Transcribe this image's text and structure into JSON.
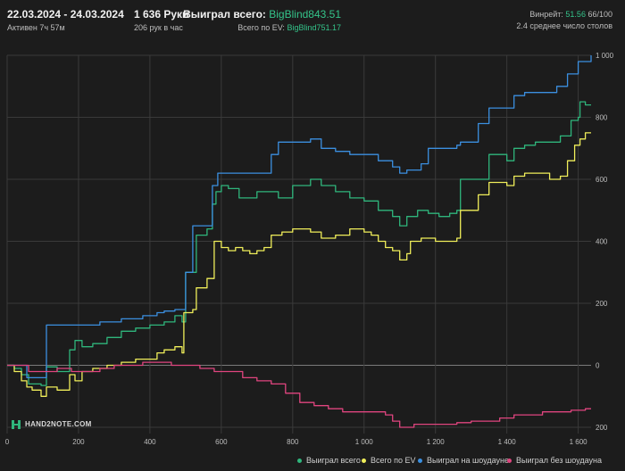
{
  "header": {
    "date_range": "22.03.2024 - 24.03.2024",
    "active": "Активен 7ч 57м",
    "hands": "1 636 Руки",
    "hands_per_hour": "206 рук в час",
    "won_label": "Выиграл всего:",
    "won_value": "BigBlind843.51",
    "ev_label": "Всего по EV:",
    "ev_value": "BigBlind751.17",
    "winrate_label": "Винрейт:",
    "winrate_value": "51.56",
    "winrate_rest": "66/100",
    "tables": "2.4 среднее число столов"
  },
  "logo_text": "HAND2NOTE.COM",
  "colors": {
    "background": "#1c1c1c",
    "grid": "#3a3a3a",
    "total": "#2fb67c",
    "ev": "#f0ee5a",
    "showdown": "#3b8fe0",
    "non_showdown": "#e0457f"
  },
  "chart_data": {
    "type": "line",
    "xlabel": "",
    "ylabel": "",
    "xlim": [
      0,
      1636
    ],
    "ylim": [
      -220,
      1000
    ],
    "x_ticks": [
      {
        "v": 0,
        "label": "0"
      },
      {
        "v": 200,
        "label": "200"
      },
      {
        "v": 400,
        "label": "400"
      },
      {
        "v": 600,
        "label": "600"
      },
      {
        "v": 800,
        "label": "800"
      },
      {
        "v": 1000,
        "label": "1 000"
      },
      {
        "v": 1200,
        "label": "1 200"
      },
      {
        "v": 1400,
        "label": "1 400"
      },
      {
        "v": 1600,
        "label": "1 600"
      }
    ],
    "y_ticks": [
      {
        "v": 1000,
        "label": "1 000"
      },
      {
        "v": 800,
        "label": "800"
      },
      {
        "v": 600,
        "label": "600"
      },
      {
        "v": 400,
        "label": "400"
      },
      {
        "v": 200,
        "label": "200"
      },
      {
        "v": 0,
        "label": "0"
      },
      {
        "v": -200,
        "label": "200"
      }
    ],
    "series": [
      {
        "name": "Выиграл всего",
        "color": "#2fb67c",
        "points": [
          [
            0,
            0
          ],
          [
            20,
            -10
          ],
          [
            40,
            -30
          ],
          [
            60,
            -60
          ],
          [
            95,
            -65
          ],
          [
            110,
            -5
          ],
          [
            140,
            -20
          ],
          [
            175,
            50
          ],
          [
            190,
            80
          ],
          [
            210,
            60
          ],
          [
            240,
            70
          ],
          [
            280,
            90
          ],
          [
            320,
            110
          ],
          [
            360,
            120
          ],
          [
            400,
            130
          ],
          [
            440,
            140
          ],
          [
            470,
            160
          ],
          [
            490,
            140
          ],
          [
            500,
            300
          ],
          [
            530,
            420
          ],
          [
            560,
            440
          ],
          [
            575,
            520
          ],
          [
            585,
            560
          ],
          [
            600,
            580
          ],
          [
            620,
            570
          ],
          [
            650,
            540
          ],
          [
            700,
            560
          ],
          [
            730,
            560
          ],
          [
            760,
            540
          ],
          [
            800,
            580
          ],
          [
            850,
            600
          ],
          [
            880,
            580
          ],
          [
            920,
            560
          ],
          [
            960,
            540
          ],
          [
            1000,
            530
          ],
          [
            1040,
            500
          ],
          [
            1080,
            480
          ],
          [
            1100,
            450
          ],
          [
            1120,
            480
          ],
          [
            1150,
            500
          ],
          [
            1180,
            490
          ],
          [
            1210,
            480
          ],
          [
            1240,
            490
          ],
          [
            1260,
            500
          ],
          [
            1270,
            600
          ],
          [
            1320,
            600
          ],
          [
            1350,
            680
          ],
          [
            1400,
            660
          ],
          [
            1420,
            700
          ],
          [
            1450,
            710
          ],
          [
            1480,
            720
          ],
          [
            1520,
            720
          ],
          [
            1550,
            740
          ],
          [
            1580,
            790
          ],
          [
            1600,
            800
          ],
          [
            1605,
            850
          ],
          [
            1620,
            840
          ],
          [
            1636,
            840
          ]
        ]
      },
      {
        "name": "Всего по EV",
        "color": "#f0ee5a",
        "points": [
          [
            0,
            0
          ],
          [
            20,
            -20
          ],
          [
            40,
            -50
          ],
          [
            55,
            -70
          ],
          [
            70,
            -80
          ],
          [
            95,
            -100
          ],
          [
            110,
            -70
          ],
          [
            140,
            -80
          ],
          [
            175,
            -30
          ],
          [
            190,
            -50
          ],
          [
            210,
            -20
          ],
          [
            240,
            -10
          ],
          [
            280,
            0
          ],
          [
            320,
            10
          ],
          [
            360,
            20
          ],
          [
            400,
            20
          ],
          [
            420,
            40
          ],
          [
            440,
            50
          ],
          [
            470,
            60
          ],
          [
            490,
            40
          ],
          [
            495,
            170
          ],
          [
            520,
            180
          ],
          [
            530,
            250
          ],
          [
            560,
            280
          ],
          [
            580,
            400
          ],
          [
            600,
            380
          ],
          [
            620,
            370
          ],
          [
            640,
            380
          ],
          [
            660,
            370
          ],
          [
            680,
            360
          ],
          [
            700,
            370
          ],
          [
            720,
            380
          ],
          [
            740,
            420
          ],
          [
            770,
            430
          ],
          [
            800,
            440
          ],
          [
            850,
            430
          ],
          [
            880,
            410
          ],
          [
            920,
            420
          ],
          [
            960,
            440
          ],
          [
            1000,
            430
          ],
          [
            1020,
            420
          ],
          [
            1040,
            400
          ],
          [
            1060,
            380
          ],
          [
            1080,
            370
          ],
          [
            1100,
            340
          ],
          [
            1120,
            360
          ],
          [
            1130,
            400
          ],
          [
            1160,
            410
          ],
          [
            1200,
            400
          ],
          [
            1240,
            400
          ],
          [
            1260,
            410
          ],
          [
            1270,
            500
          ],
          [
            1320,
            550
          ],
          [
            1350,
            590
          ],
          [
            1400,
            580
          ],
          [
            1420,
            610
          ],
          [
            1450,
            620
          ],
          [
            1480,
            620
          ],
          [
            1520,
            600
          ],
          [
            1550,
            610
          ],
          [
            1570,
            660
          ],
          [
            1590,
            710
          ],
          [
            1605,
            730
          ],
          [
            1620,
            750
          ],
          [
            1636,
            750
          ]
        ]
      },
      {
        "name": "Выиграл на шоудауне",
        "color": "#3b8fe0",
        "points": [
          [
            0,
            0
          ],
          [
            55,
            -40
          ],
          [
            95,
            -40
          ],
          [
            110,
            130
          ],
          [
            160,
            130
          ],
          [
            200,
            130
          ],
          [
            260,
            140
          ],
          [
            320,
            150
          ],
          [
            380,
            160
          ],
          [
            420,
            170
          ],
          [
            440,
            175
          ],
          [
            470,
            180
          ],
          [
            490,
            180
          ],
          [
            500,
            300
          ],
          [
            520,
            450
          ],
          [
            560,
            450
          ],
          [
            575,
            580
          ],
          [
            590,
            620
          ],
          [
            620,
            620
          ],
          [
            650,
            620
          ],
          [
            700,
            620
          ],
          [
            740,
            680
          ],
          [
            760,
            720
          ],
          [
            800,
            720
          ],
          [
            850,
            730
          ],
          [
            880,
            700
          ],
          [
            920,
            690
          ],
          [
            960,
            680
          ],
          [
            1000,
            680
          ],
          [
            1040,
            660
          ],
          [
            1080,
            640
          ],
          [
            1100,
            620
          ],
          [
            1120,
            630
          ],
          [
            1160,
            650
          ],
          [
            1180,
            700
          ],
          [
            1220,
            700
          ],
          [
            1260,
            710
          ],
          [
            1270,
            720
          ],
          [
            1320,
            780
          ],
          [
            1350,
            830
          ],
          [
            1400,
            830
          ],
          [
            1420,
            870
          ],
          [
            1450,
            880
          ],
          [
            1500,
            880
          ],
          [
            1540,
            900
          ],
          [
            1570,
            940
          ],
          [
            1600,
            980
          ],
          [
            1636,
            1000
          ]
        ]
      },
      {
        "name": "Выиграл без шоудауна",
        "color": "#e0457f",
        "points": [
          [
            0,
            0
          ],
          [
            40,
            0
          ],
          [
            60,
            -20
          ],
          [
            100,
            -20
          ],
          [
            140,
            -10
          ],
          [
            180,
            -20
          ],
          [
            220,
            -20
          ],
          [
            260,
            -10
          ],
          [
            300,
            0
          ],
          [
            340,
            0
          ],
          [
            380,
            10
          ],
          [
            420,
            10
          ],
          [
            460,
            0
          ],
          [
            500,
            0
          ],
          [
            540,
            -10
          ],
          [
            580,
            -20
          ],
          [
            620,
            -20
          ],
          [
            660,
            -40
          ],
          [
            700,
            -50
          ],
          [
            740,
            -60
          ],
          [
            780,
            -90
          ],
          [
            820,
            -120
          ],
          [
            860,
            -130
          ],
          [
            900,
            -140
          ],
          [
            940,
            -150
          ],
          [
            980,
            -150
          ],
          [
            1020,
            -150
          ],
          [
            1060,
            -160
          ],
          [
            1080,
            -180
          ],
          [
            1100,
            -200
          ],
          [
            1140,
            -190
          ],
          [
            1180,
            -190
          ],
          [
            1220,
            -190
          ],
          [
            1260,
            -185
          ],
          [
            1300,
            -180
          ],
          [
            1340,
            -180
          ],
          [
            1380,
            -170
          ],
          [
            1420,
            -160
          ],
          [
            1460,
            -160
          ],
          [
            1500,
            -150
          ],
          [
            1540,
            -150
          ],
          [
            1580,
            -145
          ],
          [
            1620,
            -140
          ],
          [
            1636,
            -140
          ]
        ]
      }
    ],
    "legend": [
      {
        "label": "Выиграл всего",
        "color": "#2fb67c"
      },
      {
        "label": "Всего по EV",
        "color": "#f0ee5a"
      },
      {
        "label": "Выиграл на шоудауне",
        "color": "#3b8fe0"
      },
      {
        "label": "Выиграл без шоудауна",
        "color": "#e0457f"
      }
    ],
    "legend_position": "bottom-right",
    "grid": true
  }
}
